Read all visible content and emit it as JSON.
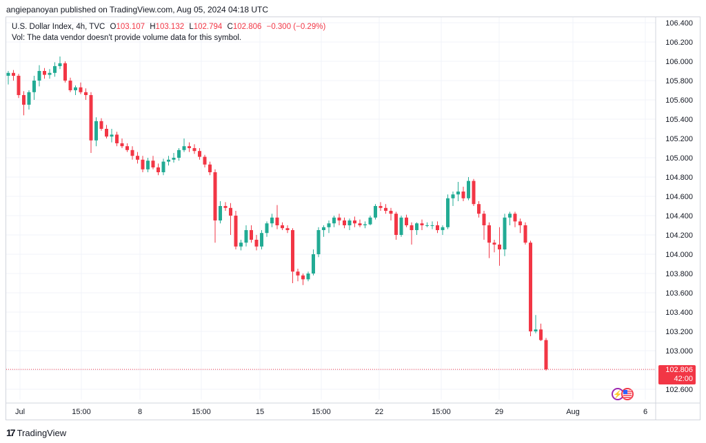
{
  "header": {
    "publisher_text": "angiepanoyan published on TradingView.com, Aug 05, 2024 04:18 UTC"
  },
  "legend": {
    "symbol": "U.S. Dollar Index, 4h, TVC",
    "o_key": "O",
    "o_val": "103.107",
    "h_key": "H",
    "h_val": "103.132",
    "l_key": "L",
    "l_val": "102.794",
    "c_key": "C",
    "c_val": "102.806",
    "change": "−0.300 (−0.29%)",
    "volume_note": "Vol: The data vendor doesn't provide volume data for this symbol."
  },
  "price_label": {
    "price": "102.806",
    "countdown": "42:00"
  },
  "footer": {
    "brand": "TradingView"
  },
  "colors": {
    "up": "#22ab94",
    "down": "#f23645",
    "grid": "#f0f3fa",
    "axis_text": "#131722"
  },
  "icons": [
    "dividend-lightning-icon",
    "us-flag-event-icon"
  ],
  "chart_data": {
    "type": "candlestick",
    "title": "U.S. Dollar Index, 4h, TVC",
    "xlabel": "",
    "ylabel": "",
    "ylim": [
      102.5,
      106.5
    ],
    "y_ticks": [
      "106.400",
      "106.200",
      "106.000",
      "105.800",
      "105.600",
      "105.400",
      "105.200",
      "105.000",
      "104.800",
      "104.600",
      "104.400",
      "104.200",
      "104.000",
      "103.800",
      "103.600",
      "103.400",
      "103.200",
      "103.000",
      "102.800",
      "102.600"
    ],
    "x_ticks": [
      "Jul",
      "15:00",
      "8",
      "15:00",
      "15",
      "15:00",
      "22",
      "15:00",
      "29",
      "Aug",
      "6"
    ],
    "last_price": 102.806,
    "grid": true,
    "candles": [
      [
        105.85,
        105.9,
        105.76,
        105.88
      ],
      [
        105.88,
        105.91,
        105.8,
        105.85
      ],
      [
        105.85,
        105.87,
        105.62,
        105.65
      ],
      [
        105.65,
        105.69,
        105.44,
        105.55
      ],
      [
        105.55,
        105.7,
        105.5,
        105.68
      ],
      [
        105.68,
        105.85,
        105.6,
        105.8
      ],
      [
        105.8,
        105.96,
        105.74,
        105.9
      ],
      [
        105.9,
        105.93,
        105.82,
        105.86
      ],
      [
        105.86,
        105.92,
        105.82,
        105.88
      ],
      [
        105.88,
        105.99,
        105.84,
        105.95
      ],
      [
        105.95,
        106.05,
        105.92,
        105.98
      ],
      [
        105.98,
        106.0,
        105.78,
        105.8
      ],
      [
        105.8,
        105.83,
        105.68,
        105.7
      ],
      [
        105.7,
        105.75,
        105.65,
        105.73
      ],
      [
        105.73,
        105.78,
        105.66,
        105.68
      ],
      [
        105.68,
        105.72,
        105.6,
        105.65
      ],
      [
        105.65,
        105.68,
        105.05,
        105.18
      ],
      [
        105.18,
        105.42,
        105.12,
        105.38
      ],
      [
        105.38,
        105.41,
        105.28,
        105.3
      ],
      [
        105.3,
        105.34,
        105.2,
        105.22
      ],
      [
        105.22,
        105.3,
        105.16,
        105.24
      ],
      [
        105.24,
        105.27,
        105.12,
        105.15
      ],
      [
        105.15,
        105.2,
        105.1,
        105.12
      ],
      [
        105.12,
        105.15,
        105.06,
        105.08
      ],
      [
        105.08,
        105.12,
        104.98,
        105.02
      ],
      [
        105.02,
        105.06,
        104.94,
        104.98
      ],
      [
        104.98,
        105.02,
        104.85,
        104.88
      ],
      [
        104.88,
        105.0,
        104.85,
        104.97
      ],
      [
        104.97,
        105.02,
        104.88,
        104.9
      ],
      [
        104.9,
        104.94,
        104.82,
        104.85
      ],
      [
        104.85,
        104.99,
        104.82,
        104.96
      ],
      [
        104.96,
        105.02,
        104.92,
        104.98
      ],
      [
        104.98,
        105.05,
        104.95,
        105.0
      ],
      [
        105.0,
        105.1,
        104.97,
        105.08
      ],
      [
        105.08,
        105.2,
        105.06,
        105.12
      ],
      [
        105.12,
        105.16,
        105.06,
        105.1
      ],
      [
        105.1,
        105.14,
        105.04,
        105.07
      ],
      [
        105.07,
        105.1,
        104.98,
        105.01
      ],
      [
        105.01,
        105.03,
        104.9,
        104.93
      ],
      [
        104.93,
        104.96,
        104.82,
        104.85
      ],
      [
        104.85,
        104.88,
        104.12,
        104.35
      ],
      [
        104.35,
        104.55,
        104.32,
        104.5
      ],
      [
        104.5,
        104.54,
        104.45,
        104.48
      ],
      [
        104.48,
        104.53,
        104.2,
        104.4
      ],
      [
        104.4,
        104.45,
        104.05,
        104.08
      ],
      [
        104.08,
        104.15,
        104.04,
        104.12
      ],
      [
        104.12,
        104.3,
        104.08,
        104.25
      ],
      [
        104.25,
        104.3,
        104.12,
        104.15
      ],
      [
        104.15,
        104.2,
        104.04,
        104.08
      ],
      [
        104.08,
        104.25,
        104.05,
        104.22
      ],
      [
        104.22,
        104.34,
        104.18,
        104.32
      ],
      [
        104.32,
        104.42,
        104.28,
        104.38
      ],
      [
        104.38,
        104.51,
        104.26,
        104.3
      ],
      [
        104.3,
        104.33,
        104.25,
        104.27
      ],
      [
        104.27,
        104.3,
        104.22,
        104.25
      ],
      [
        104.25,
        104.27,
        103.7,
        103.82
      ],
      [
        103.82,
        103.85,
        103.72,
        103.78
      ],
      [
        103.78,
        103.8,
        103.68,
        103.74
      ],
      [
        103.74,
        103.82,
        103.72,
        103.8
      ],
      [
        103.8,
        104.05,
        103.78,
        104.0
      ],
      [
        104.0,
        104.28,
        103.97,
        104.25
      ],
      [
        104.25,
        104.3,
        104.18,
        104.28
      ],
      [
        104.28,
        104.35,
        104.22,
        104.32
      ],
      [
        104.32,
        104.4,
        104.28,
        104.38
      ],
      [
        104.38,
        104.42,
        104.3,
        104.35
      ],
      [
        104.35,
        104.38,
        104.27,
        104.3
      ],
      [
        104.3,
        104.37,
        104.25,
        104.35
      ],
      [
        104.35,
        104.39,
        104.28,
        104.32
      ],
      [
        104.32,
        104.36,
        104.28,
        104.3
      ],
      [
        104.3,
        104.34,
        104.27,
        104.31
      ],
      [
        104.31,
        104.4,
        104.3,
        104.38
      ],
      [
        104.38,
        104.52,
        104.36,
        104.5
      ],
      [
        104.5,
        104.54,
        104.45,
        104.48
      ],
      [
        104.48,
        104.52,
        104.42,
        104.45
      ],
      [
        104.45,
        104.48,
        104.35,
        104.42
      ],
      [
        104.42,
        104.44,
        104.15,
        104.2
      ],
      [
        104.2,
        104.4,
        104.18,
        104.38
      ],
      [
        104.38,
        104.41,
        104.28,
        104.3
      ],
      [
        104.3,
        104.33,
        104.1,
        104.25
      ],
      [
        104.25,
        104.33,
        104.2,
        104.32
      ],
      [
        104.32,
        104.36,
        104.25,
        104.3
      ],
      [
        104.3,
        104.33,
        104.28,
        104.3
      ],
      [
        104.3,
        104.34,
        104.26,
        104.3
      ],
      [
        104.3,
        104.34,
        104.22,
        104.25
      ],
      [
        104.25,
        104.3,
        104.2,
        104.28
      ],
      [
        104.28,
        104.62,
        104.26,
        104.58
      ],
      [
        104.58,
        104.65,
        104.5,
        104.62
      ],
      [
        104.62,
        104.75,
        104.55,
        104.65
      ],
      [
        104.65,
        104.7,
        104.55,
        104.58
      ],
      [
        104.58,
        104.8,
        104.56,
        104.76
      ],
      [
        104.76,
        104.78,
        104.5,
        104.52
      ],
      [
        104.52,
        104.55,
        104.38,
        104.42
      ],
      [
        104.42,
        104.45,
        104.15,
        104.3
      ],
      [
        104.3,
        104.33,
        103.96,
        104.12
      ],
      [
        104.12,
        104.15,
        104.02,
        104.1
      ],
      [
        104.1,
        104.28,
        103.88,
        104.05
      ],
      [
        104.05,
        104.42,
        103.98,
        104.38
      ],
      [
        104.38,
        104.44,
        104.3,
        104.42
      ],
      [
        104.42,
        104.44,
        104.28,
        104.34
      ],
      [
        104.34,
        104.37,
        104.22,
        104.3
      ],
      [
        104.3,
        104.33,
        104.1,
        104.12
      ],
      [
        104.12,
        104.14,
        103.15,
        103.2
      ],
      [
        103.2,
        103.37,
        103.18,
        103.22
      ],
      [
        103.22,
        103.28,
        103.1,
        103.11
      ],
      [
        103.11,
        103.132,
        102.794,
        102.806
      ]
    ]
  }
}
